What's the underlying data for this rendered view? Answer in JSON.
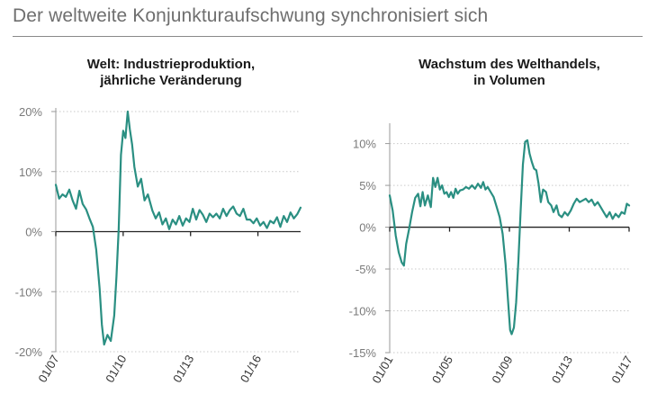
{
  "page": {
    "title": "Der weltweite Konjunkturaufschwung synchronisiert sich"
  },
  "colors": {
    "line": "#2a8f82",
    "grid": "#c9c9c9",
    "axis": "#222222"
  },
  "chart_data": [
    {
      "type": "line",
      "title_lines": [
        "Welt: Industrieproduktion,",
        "jährliche Veränderung"
      ],
      "xlabel": "",
      "ylabel": "",
      "x_range": [
        2007.0,
        2017.9
      ],
      "ylim": [
        -20,
        20
      ],
      "y_ticks": [
        20,
        10,
        0,
        -10,
        -20
      ],
      "y_tick_labels": [
        "20%",
        "10%",
        "0%",
        "-10%",
        "-20%"
      ],
      "x_ticks": [
        2007,
        2010,
        2013,
        2016
      ],
      "x_tick_labels": [
        "01/07",
        "01/10",
        "01/13",
        "01/16"
      ],
      "grid": true,
      "series": [
        {
          "values": [
            [
              2007.0,
              7.8
            ],
            [
              2007.15,
              5.5
            ],
            [
              2007.3,
              6.2
            ],
            [
              2007.45,
              5.8
            ],
            [
              2007.6,
              7.0
            ],
            [
              2007.75,
              5.2
            ],
            [
              2007.9,
              3.8
            ],
            [
              2008.05,
              6.8
            ],
            [
              2008.2,
              4.6
            ],
            [
              2008.35,
              3.7
            ],
            [
              2008.5,
              2.2
            ],
            [
              2008.65,
              0.8
            ],
            [
              2008.8,
              -3.0
            ],
            [
              2008.95,
              -9.5
            ],
            [
              2009.05,
              -15.5
            ],
            [
              2009.15,
              -18.8
            ],
            [
              2009.3,
              -17.2
            ],
            [
              2009.45,
              -18.2
            ],
            [
              2009.6,
              -14.0
            ],
            [
              2009.7,
              -7.5
            ],
            [
              2009.8,
              0.5
            ],
            [
              2009.9,
              12.8
            ],
            [
              2010.0,
              16.8
            ],
            [
              2010.1,
              15.6
            ],
            [
              2010.2,
              20.0
            ],
            [
              2010.3,
              17.0
            ],
            [
              2010.4,
              14.5
            ],
            [
              2010.5,
              10.8
            ],
            [
              2010.65,
              7.5
            ],
            [
              2010.8,
              8.8
            ],
            [
              2010.95,
              5.2
            ],
            [
              2011.1,
              6.2
            ],
            [
              2011.3,
              3.5
            ],
            [
              2011.45,
              2.2
            ],
            [
              2011.6,
              3.2
            ],
            [
              2011.75,
              1.2
            ],
            [
              2011.9,
              2.2
            ],
            [
              2012.05,
              0.4
            ],
            [
              2012.2,
              2.0
            ],
            [
              2012.35,
              1.2
            ],
            [
              2012.5,
              2.6
            ],
            [
              2012.65,
              1.0
            ],
            [
              2012.8,
              2.2
            ],
            [
              2012.95,
              1.6
            ],
            [
              2013.1,
              3.8
            ],
            [
              2013.25,
              2.0
            ],
            [
              2013.4,
              3.6
            ],
            [
              2013.55,
              2.8
            ],
            [
              2013.7,
              1.6
            ],
            [
              2013.85,
              3.0
            ],
            [
              2014.0,
              2.4
            ],
            [
              2014.15,
              3.0
            ],
            [
              2014.3,
              2.2
            ],
            [
              2014.45,
              3.8
            ],
            [
              2014.6,
              2.6
            ],
            [
              2014.75,
              3.6
            ],
            [
              2014.9,
              4.2
            ],
            [
              2015.05,
              3.0
            ],
            [
              2015.2,
              2.6
            ],
            [
              2015.35,
              3.8
            ],
            [
              2015.5,
              2.0
            ],
            [
              2015.65,
              2.0
            ],
            [
              2015.8,
              1.4
            ],
            [
              2015.95,
              2.2
            ],
            [
              2016.1,
              1.0
            ],
            [
              2016.25,
              1.6
            ],
            [
              2016.4,
              0.6
            ],
            [
              2016.55,
              1.8
            ],
            [
              2016.7,
              1.4
            ],
            [
              2016.85,
              2.4
            ],
            [
              2017.0,
              0.8
            ],
            [
              2017.15,
              2.6
            ],
            [
              2017.3,
              1.6
            ],
            [
              2017.45,
              3.2
            ],
            [
              2017.6,
              2.2
            ],
            [
              2017.75,
              2.9
            ],
            [
              2017.9,
              4.0
            ]
          ]
        }
      ]
    },
    {
      "type": "line",
      "title_lines": [
        "Wachstum des Welthandels,",
        "in Volumen"
      ],
      "xlabel": "",
      "ylabel": "",
      "x_range": [
        2001.0,
        2017.0
      ],
      "ylim": [
        -15,
        12
      ],
      "y_ticks": [
        10,
        5,
        0,
        -5,
        -10,
        -15
      ],
      "y_tick_labels": [
        "10%",
        "5%",
        "0%",
        "-5%",
        "-10%",
        "-15%"
      ],
      "x_ticks": [
        2001,
        2005,
        2009,
        2013,
        2017
      ],
      "x_tick_labels": [
        "01/01",
        "01/05",
        "01/09",
        "01/13",
        "01/17"
      ],
      "grid": true,
      "series": [
        {
          "values": [
            [
              2001.0,
              3.8
            ],
            [
              2001.2,
              2.0
            ],
            [
              2001.4,
              -1.0
            ],
            [
              2001.6,
              -3.0
            ],
            [
              2001.8,
              -4.2
            ],
            [
              2001.95,
              -4.6
            ],
            [
              2002.1,
              -2.0
            ],
            [
              2002.3,
              -0.2
            ],
            [
              2002.5,
              1.8
            ],
            [
              2002.7,
              3.5
            ],
            [
              2002.9,
              4.0
            ],
            [
              2003.05,
              2.5
            ],
            [
              2003.2,
              4.2
            ],
            [
              2003.35,
              2.6
            ],
            [
              2003.55,
              3.8
            ],
            [
              2003.75,
              2.4
            ],
            [
              2003.9,
              5.9
            ],
            [
              2004.05,
              4.8
            ],
            [
              2004.2,
              5.9
            ],
            [
              2004.35,
              4.5
            ],
            [
              2004.5,
              5.0
            ],
            [
              2004.65,
              4.0
            ],
            [
              2004.8,
              4.2
            ],
            [
              2004.95,
              3.6
            ],
            [
              2005.1,
              4.2
            ],
            [
              2005.25,
              3.5
            ],
            [
              2005.4,
              4.6
            ],
            [
              2005.55,
              4.0
            ],
            [
              2005.7,
              4.4
            ],
            [
              2005.9,
              4.5
            ],
            [
              2006.1,
              4.8
            ],
            [
              2006.3,
              4.6
            ],
            [
              2006.5,
              5.0
            ],
            [
              2006.7,
              4.6
            ],
            [
              2006.9,
              5.2
            ],
            [
              2007.1,
              4.7
            ],
            [
              2007.25,
              5.4
            ],
            [
              2007.4,
              4.5
            ],
            [
              2007.55,
              4.8
            ],
            [
              2007.75,
              4.2
            ],
            [
              2007.95,
              3.6
            ],
            [
              2008.15,
              2.4
            ],
            [
              2008.35,
              1.2
            ],
            [
              2008.55,
              -0.8
            ],
            [
              2008.75,
              -4.5
            ],
            [
              2008.9,
              -8.5
            ],
            [
              2009.05,
              -12.3
            ],
            [
              2009.15,
              -12.8
            ],
            [
              2009.3,
              -12.0
            ],
            [
              2009.45,
              -9.0
            ],
            [
              2009.6,
              -4.0
            ],
            [
              2009.75,
              2.0
            ],
            [
              2009.9,
              7.5
            ],
            [
              2010.05,
              10.2
            ],
            [
              2010.2,
              10.4
            ],
            [
              2010.35,
              8.8
            ],
            [
              2010.5,
              7.8
            ],
            [
              2010.65,
              7.0
            ],
            [
              2010.8,
              6.8
            ],
            [
              2010.95,
              5.2
            ],
            [
              2011.1,
              3.0
            ],
            [
              2011.25,
              4.5
            ],
            [
              2011.45,
              4.2
            ],
            [
              2011.6,
              3.0
            ],
            [
              2011.8,
              2.6
            ],
            [
              2011.95,
              1.8
            ],
            [
              2012.15,
              2.6
            ],
            [
              2012.3,
              1.5
            ],
            [
              2012.5,
              1.2
            ],
            [
              2012.7,
              1.8
            ],
            [
              2012.9,
              1.4
            ],
            [
              2013.1,
              2.0
            ],
            [
              2013.3,
              2.8
            ],
            [
              2013.5,
              3.4
            ],
            [
              2013.7,
              3.0
            ],
            [
              2013.9,
              3.2
            ],
            [
              2014.1,
              3.4
            ],
            [
              2014.3,
              3.0
            ],
            [
              2014.5,
              3.3
            ],
            [
              2014.7,
              2.6
            ],
            [
              2014.9,
              3.0
            ],
            [
              2015.1,
              2.4
            ],
            [
              2015.3,
              1.8
            ],
            [
              2015.5,
              1.2
            ],
            [
              2015.7,
              1.8
            ],
            [
              2015.9,
              1.0
            ],
            [
              2016.1,
              1.6
            ],
            [
              2016.3,
              1.2
            ],
            [
              2016.5,
              1.8
            ],
            [
              2016.7,
              1.6
            ],
            [
              2016.85,
              2.8
            ],
            [
              2017.0,
              2.6
            ]
          ]
        }
      ]
    }
  ]
}
